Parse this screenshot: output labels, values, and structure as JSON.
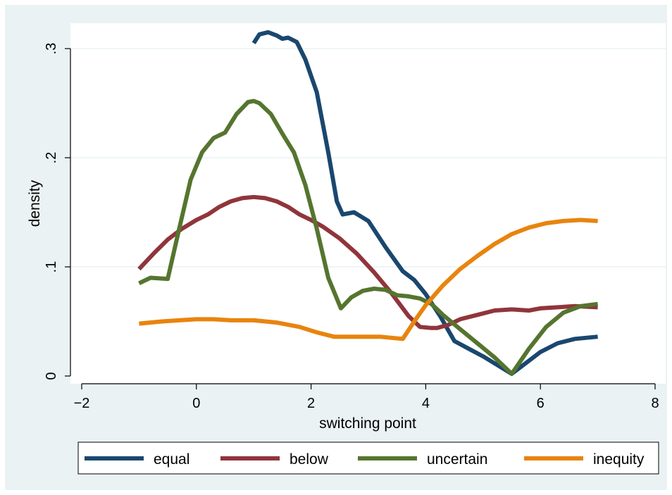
{
  "chart_data": {
    "type": "line",
    "xlabel": "switching point",
    "ylabel": "density",
    "xlim": [
      -2,
      8
    ],
    "ylim": [
      0,
      0.32
    ],
    "xticks": [
      -2,
      0,
      2,
      4,
      6,
      8
    ],
    "xtick_labels": [
      "−2",
      "0",
      "2",
      "4",
      "6",
      "8"
    ],
    "yticks": [
      0,
      0.1,
      0.2,
      0.3
    ],
    "ytick_labels": [
      "0",
      ".1",
      ".2",
      ".3"
    ],
    "grid": "horizontal",
    "legend": "bottom",
    "series": [
      {
        "name": "equal",
        "color": "#1a476f",
        "x": [
          1.0,
          1.1,
          1.25,
          1.4,
          1.5,
          1.6,
          1.75,
          1.9,
          2.1,
          2.3,
          2.45,
          2.55,
          2.75,
          3.0,
          3.3,
          3.6,
          3.8,
          4.0,
          4.25,
          4.5,
          4.75,
          5.0,
          5.25,
          5.5,
          5.75,
          6.0,
          6.3,
          6.6,
          7.0
        ],
        "values": [
          0.305,
          0.313,
          0.315,
          0.312,
          0.309,
          0.31,
          0.306,
          0.29,
          0.26,
          0.205,
          0.16,
          0.148,
          0.15,
          0.142,
          0.118,
          0.096,
          0.088,
          0.075,
          0.055,
          0.032,
          0.025,
          0.018,
          0.01,
          0.002,
          0.012,
          0.022,
          0.03,
          0.034,
          0.036
        ]
      },
      {
        "name": "below",
        "color": "#90353b",
        "x": [
          -1.0,
          -0.75,
          -0.5,
          -0.25,
          0.0,
          0.2,
          0.4,
          0.6,
          0.8,
          1.0,
          1.2,
          1.4,
          1.6,
          1.8,
          2.0,
          2.2,
          2.5,
          2.8,
          3.1,
          3.4,
          3.7,
          3.9,
          4.1,
          4.2,
          4.4,
          4.6,
          4.9,
          5.2,
          5.5,
          5.8,
          6.0,
          6.3,
          6.6,
          7.0
        ],
        "values": [
          0.098,
          0.112,
          0.125,
          0.135,
          0.143,
          0.148,
          0.155,
          0.16,
          0.163,
          0.164,
          0.163,
          0.16,
          0.155,
          0.148,
          0.143,
          0.137,
          0.126,
          0.112,
          0.095,
          0.076,
          0.055,
          0.045,
          0.044,
          0.044,
          0.047,
          0.052,
          0.056,
          0.06,
          0.061,
          0.06,
          0.062,
          0.063,
          0.064,
          0.063
        ]
      },
      {
        "name": "uncertain",
        "color": "#55752f",
        "x": [
          -1.0,
          -0.8,
          -0.5,
          -0.3,
          -0.1,
          0.1,
          0.3,
          0.5,
          0.7,
          0.9,
          1.0,
          1.1,
          1.3,
          1.5,
          1.7,
          1.9,
          2.1,
          2.3,
          2.52,
          2.7,
          2.9,
          3.1,
          3.3,
          3.5,
          3.7,
          3.9,
          4.1,
          4.3,
          4.6,
          4.9,
          5.2,
          5.5,
          5.8,
          6.1,
          6.4,
          6.7,
          7.0
        ],
        "values": [
          0.085,
          0.09,
          0.089,
          0.135,
          0.18,
          0.205,
          0.218,
          0.223,
          0.24,
          0.251,
          0.252,
          0.25,
          0.24,
          0.222,
          0.205,
          0.175,
          0.135,
          0.09,
          0.062,
          0.072,
          0.078,
          0.08,
          0.079,
          0.074,
          0.073,
          0.071,
          0.066,
          0.056,
          0.043,
          0.03,
          0.017,
          0.002,
          0.025,
          0.045,
          0.058,
          0.064,
          0.066
        ]
      },
      {
        "name": "inequity",
        "color": "#e8840e",
        "x": [
          -1.0,
          -0.6,
          -0.3,
          0.0,
          0.3,
          0.6,
          1.0,
          1.4,
          1.8,
          2.1,
          2.4,
          2.8,
          3.2,
          3.6,
          3.8,
          4.0,
          4.3,
          4.6,
          4.9,
          5.2,
          5.5,
          5.8,
          6.1,
          6.4,
          6.7,
          7.0
        ],
        "values": [
          0.048,
          0.05,
          0.051,
          0.052,
          0.052,
          0.051,
          0.051,
          0.049,
          0.045,
          0.04,
          0.036,
          0.036,
          0.036,
          0.034,
          0.05,
          0.065,
          0.083,
          0.098,
          0.11,
          0.121,
          0.13,
          0.136,
          0.14,
          0.142,
          0.143,
          0.142
        ]
      }
    ]
  }
}
